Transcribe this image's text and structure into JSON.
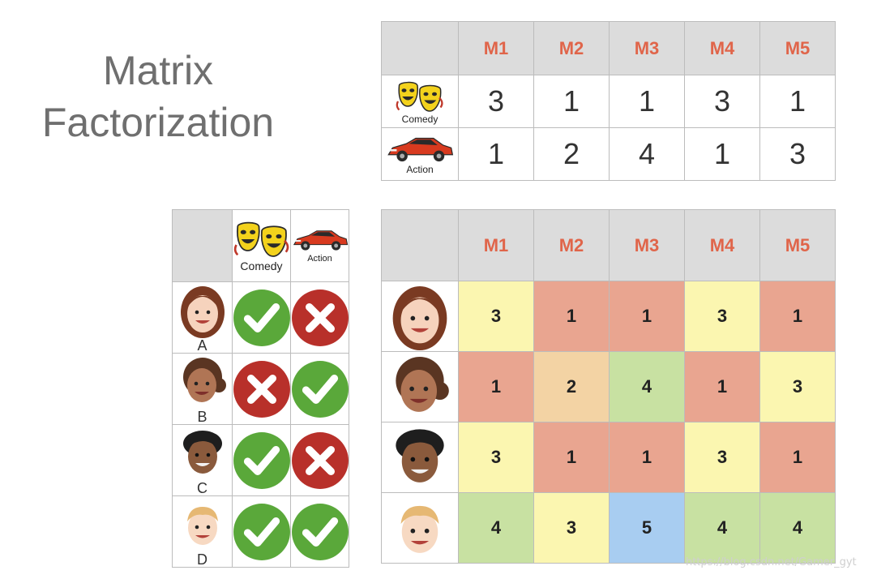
{
  "title": {
    "line1": "Matrix",
    "line2": "Factorization"
  },
  "genres": [
    {
      "name": "Comedy",
      "icon": "comedy-masks-icon"
    },
    {
      "name": "Action",
      "icon": "red-sports-car-icon"
    }
  ],
  "movies": [
    "M1",
    "M2",
    "M3",
    "M4",
    "M5"
  ],
  "genre_table": {
    "rows": [
      {
        "genre": "Comedy",
        "values": [
          "3",
          "1",
          "1",
          "3",
          "1"
        ]
      },
      {
        "genre": "Action",
        "values": [
          "1",
          "2",
          "4",
          "1",
          "3"
        ]
      }
    ]
  },
  "users": [
    {
      "label": "A",
      "icon": "user-face-a-icon",
      "comedy": "like",
      "action": "dislike"
    },
    {
      "label": "B",
      "icon": "user-face-b-icon",
      "comedy": "dislike",
      "action": "like"
    },
    {
      "label": "C",
      "icon": "user-face-c-icon",
      "comedy": "like",
      "action": "dislike"
    },
    {
      "label": "D",
      "icon": "user-face-d-icon",
      "comedy": "like",
      "action": "like"
    }
  ],
  "ratings": {
    "rows": [
      {
        "values": [
          "3",
          "1",
          "1",
          "3",
          "1"
        ]
      },
      {
        "values": [
          "1",
          "2",
          "4",
          "1",
          "3"
        ]
      },
      {
        "values": [
          "3",
          "1",
          "1",
          "3",
          "1"
        ]
      },
      {
        "values": [
          "4",
          "3",
          "5",
          "4",
          "4"
        ]
      }
    ]
  },
  "colors": {
    "header_bg": "#dcdcdc",
    "movie_header_text": "#e0654a",
    "check_green": "#5aa83a",
    "cross_red": "#b8302a",
    "rating_3": "#fbf6b0",
    "rating_1": "#e9a590",
    "rating_2": "#f3d3a4",
    "rating_4": "#c8e1a2",
    "rating_5": "#a8cdf1"
  },
  "watermark": "https://blog.csdn.net/Gamer_gyt"
}
